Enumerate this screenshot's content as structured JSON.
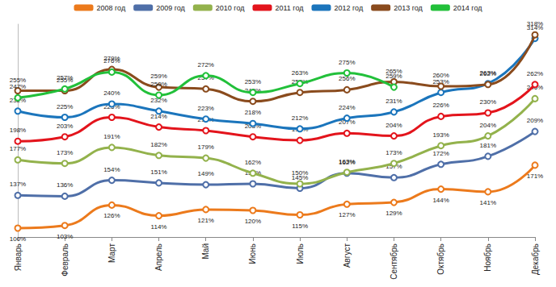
{
  "chart_data": {
    "type": "line",
    "categories": [
      "Январь",
      "Февраль",
      "Март",
      "Апрель",
      "Май",
      "Июнь",
      "Июль",
      "Август",
      "Сентябрь",
      "Октябрь",
      "Ноябрь",
      "Декабрь"
    ],
    "series": [
      {
        "name": "2008 год",
        "color": "#ec7a1c",
        "values": [
          100,
          103,
          126,
          114,
          121,
          120,
          115,
          127,
          129,
          144,
          141,
          171
        ],
        "value_labels": [
          "100%",
          "103%",
          "126%",
          "114%",
          "121%",
          "120%",
          "115%",
          "127%",
          "129%",
          "144%",
          "141%",
          "171%"
        ]
      },
      {
        "name": "2009 год",
        "color": "#4f6fa8",
        "values": [
          137,
          136,
          154,
          151,
          149,
          150,
          145,
          162,
          157,
          172,
          181,
          209
        ],
        "value_labels": [
          "137%",
          "136%",
          "154%",
          "151%",
          "149%",
          "150%",
          "145%",
          "162%",
          "157%",
          "172%",
          "181%",
          "209%"
        ]
      },
      {
        "name": "2010 год",
        "color": "#93b24c",
        "values": [
          177,
          173,
          191,
          182,
          179,
          162,
          150,
          163,
          173,
          193,
          204,
          246
        ],
        "value_labels": [
          "177%",
          "173%",
          "191%",
          "182%",
          "179%",
          "162%",
          "150%",
          "163%",
          "173%",
          "193%",
          "204%",
          "246%"
        ]
      },
      {
        "name": "2011 год",
        "color": "#e3141c",
        "values": [
          198,
          203,
          225,
          214,
          210,
          203,
          199,
          207,
          204,
          226,
          230,
          262
        ],
        "value_labels": [
          "198%",
          "203%",
          "225%",
          "214%",
          "210%",
          "203%",
          "199%",
          "207%",
          "204%",
          "226%",
          "230%",
          "262%"
        ]
      },
      {
        "name": "2012 год",
        "color": "#1b75bc",
        "values": [
          232,
          225,
          240,
          232,
          223,
          218,
          212,
          224,
          231,
          253,
          263,
          314
        ],
        "value_labels": [
          "232%",
          "225%",
          "240%",
          "232%",
          "223%",
          "218%",
          "212%",
          "224%",
          "231%",
          "253%",
          "263%",
          "314%"
        ]
      },
      {
        "name": "2013 год",
        "color": "#8a4b1d",
        "values": [
          255,
          255,
          279,
          259,
          257,
          243,
          253,
          256,
          265,
          260,
          262,
          318
        ],
        "value_labels": [
          "255%",
          "255%",
          "279%",
          "259%",
          "257%",
          "243%",
          "253%",
          "256%",
          "265%",
          "260%",
          "262%",
          "318%"
        ]
      },
      {
        "name": "2014 год",
        "color": "#22c03a",
        "values": [
          247,
          257,
          276,
          250,
          272,
          253,
          263,
          275,
          259,
          null,
          null,
          null
        ],
        "value_labels": [
          "247%",
          "257%",
          "276%",
          "250%",
          "272%",
          "253%",
          "263%",
          "275%",
          "259%",
          null,
          null,
          null
        ]
      }
    ],
    "ylim": [
      90,
      330
    ],
    "grid": false,
    "legend": "top",
    "data_labels": true,
    "tick_labels": "x",
    "marker": "circle",
    "line_style": "smooth"
  }
}
